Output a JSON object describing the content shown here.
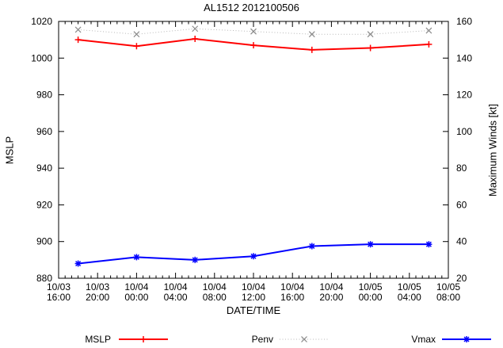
{
  "chart_data": {
    "type": "line",
    "title": "AL1512 2012100506",
    "axes": {
      "x": {
        "label": "DATE/TIME",
        "start": "10/03 16:00",
        "end": "10/05 08:00",
        "hours_total": 40,
        "major_step_hours": 4,
        "minor_step_minutes": 40,
        "tick_labels": [
          [
            "10/03",
            "16:00"
          ],
          [
            "10/03",
            "20:00"
          ],
          [
            "10/04",
            "00:00"
          ],
          [
            "10/04",
            "04:00"
          ],
          [
            "10/04",
            "08:00"
          ],
          [
            "10/04",
            "12:00"
          ],
          [
            "10/04",
            "16:00"
          ],
          [
            "10/04",
            "20:00"
          ],
          [
            "10/05",
            "00:00"
          ],
          [
            "10/05",
            "04:00"
          ],
          [
            "10/05",
            "08:00"
          ]
        ]
      },
      "y_left": {
        "label": "MSLP",
        "min": 880,
        "max": 1020,
        "step": 20,
        "tick_labels": [
          "880",
          "900",
          "920",
          "940",
          "960",
          "980",
          "1000",
          "1020"
        ]
      },
      "y_right": {
        "label": "Maximum Winds [kt]",
        "min": 20,
        "max": 160,
        "step": 20,
        "tick_labels": [
          "20",
          "40",
          "60",
          "80",
          "100",
          "120",
          "140",
          "160"
        ]
      }
    },
    "grid": false,
    "legend_position": "below-plot",
    "point_times": [
      "10/03 18:00",
      "10/04 00:00",
      "10/04 06:00",
      "10/04 12:00",
      "10/04 18:00",
      "10/05 00:00",
      "10/05 06:00"
    ],
    "x_hours": [
      2,
      8,
      14,
      20,
      26,
      32,
      38
    ],
    "series": [
      {
        "name": "MSLP",
        "axis": "left",
        "marker": "plus",
        "line": "solid",
        "color": "#ff0000",
        "marker_color": "#ff0000",
        "values": [
          1010,
          1006.5,
          1010.5,
          1007,
          1004.5,
          1005.5,
          1007.5
        ]
      },
      {
        "name": "Penv",
        "axis": "left",
        "marker": "cross",
        "line": "dotted",
        "color": "#b8b8b8",
        "marker_color": "#8a8a8a",
        "values": [
          1015.5,
          1013,
          1016,
          1014.5,
          1013,
          1013,
          1015
        ]
      },
      {
        "name": "Vmax",
        "axis": "right",
        "marker": "asterisk",
        "line": "solid",
        "color": "#0000ff",
        "marker_color": "#0000ff",
        "values": [
          28,
          31.5,
          30,
          32,
          37.5,
          38.5,
          38.5
        ]
      }
    ],
    "colors": {
      "axis": "#000000",
      "background": "#ffffff"
    }
  }
}
